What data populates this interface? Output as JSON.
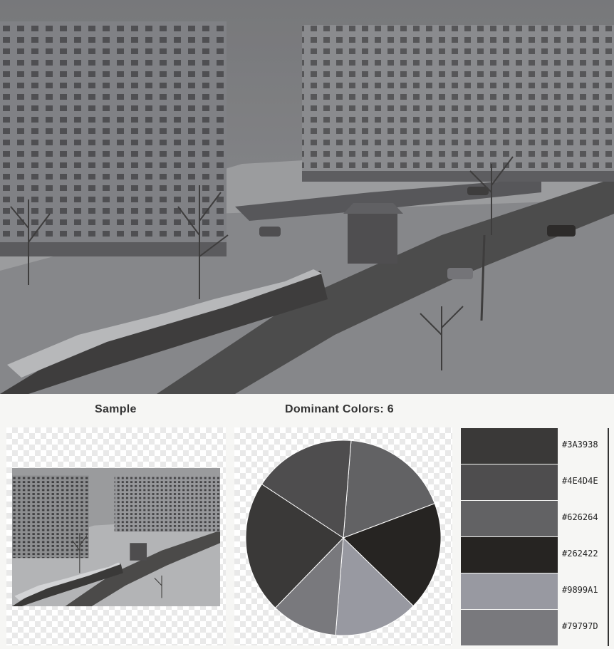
{
  "sample_label": "Sample",
  "dominant_label": "Dominant Colors: 6",
  "palette": [
    {
      "hex": "#3A3938",
      "label": "#3A3938"
    },
    {
      "hex": "#4E4D4E",
      "label": "#4E4D4E"
    },
    {
      "hex": "#626264",
      "label": "#626264"
    },
    {
      "hex": "#262422",
      "label": "#262422"
    },
    {
      "hex": "#9899A1",
      "label": "#9899A1"
    },
    {
      "hex": "#79797D",
      "label": "#79797D"
    }
  ],
  "chart_data": {
    "type": "pie",
    "series": [
      {
        "color": "#626264",
        "value": 18
      },
      {
        "color": "#262422",
        "value": 18
      },
      {
        "color": "#9899A1",
        "value": 14
      },
      {
        "color": "#79797D",
        "value": 11
      },
      {
        "color": "#3A3938",
        "value": 22
      },
      {
        "color": "#4E4D4E",
        "value": 17
      }
    ]
  }
}
